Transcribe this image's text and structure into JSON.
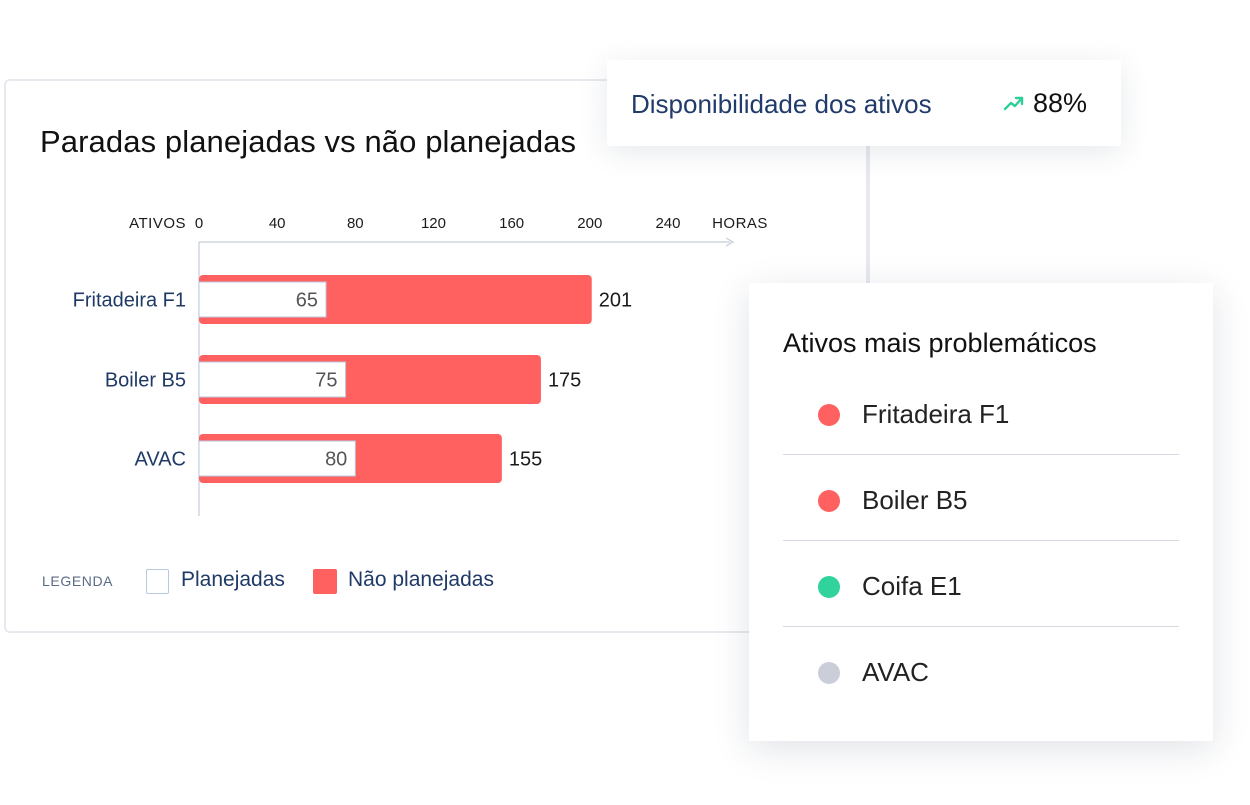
{
  "availability": {
    "label": "Disponibilidade dos ativos",
    "value": "88%",
    "trend_icon": "trending-up-icon",
    "trend_color": "#2ecf9a"
  },
  "chart_data": {
    "type": "bar",
    "orientation": "horizontal",
    "stacked": true,
    "title": "Paradas planejadas vs não planejadas",
    "ylabel": "ATIVOS",
    "xlabel": "HORAS",
    "x_ticks": [
      "0",
      "40",
      "80",
      "120",
      "160",
      "200",
      "240"
    ],
    "xlim": [
      0,
      280
    ],
    "categories": [
      "Fritadeira F1",
      "Boiler B5",
      "AVAC"
    ],
    "series": [
      {
        "name": "Planejadas",
        "values": [
          65,
          75,
          80
        ],
        "color": "#ffffff",
        "border": "#b8c8df"
      },
      {
        "name": "Não planejadas",
        "values": [
          201,
          175,
          155
        ],
        "color": "#ff6161"
      }
    ],
    "legend_position": "bottom-left",
    "grid": false
  },
  "legend": {
    "label": "LEGENDA",
    "planned": "Planejadas",
    "unplanned": "Não planejadas"
  },
  "problem_assets": {
    "title": "Ativos mais problemáticos",
    "items": [
      {
        "name": "Fritadeira F1",
        "color": "#ff6161"
      },
      {
        "name": "Boiler B5",
        "color": "#ff6161"
      },
      {
        "name": "Coifa E1",
        "color": "#2fd39b"
      },
      {
        "name": "AVAC",
        "color": "#c9ced8"
      }
    ]
  }
}
